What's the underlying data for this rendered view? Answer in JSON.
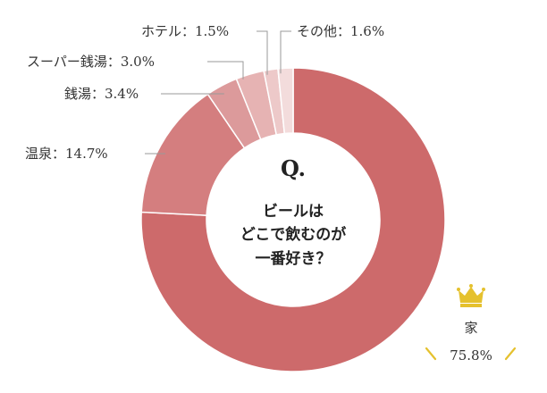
{
  "chart_data": {
    "type": "pie",
    "center_question": {
      "title": "Q.",
      "lines": [
        "ビールは",
        "どこで飲むのが",
        "一番好き？"
      ]
    },
    "slices": [
      {
        "label": "家",
        "value_text": "75.8%",
        "value": 75.8,
        "color": "#cd6a6b"
      },
      {
        "label": "温泉",
        "value_text": "14.7%",
        "value": 14.7,
        "color": "#d47e7f"
      },
      {
        "label": "銭湯",
        "value_text": "3.4%",
        "value": 3.4,
        "color": "#dc9a9b"
      },
      {
        "label": "スーパー銭湯",
        "value_text": "3.0%",
        "value": 3.0,
        "color": "#e6b3b3"
      },
      {
        "label": "ホテル",
        "value_text": "1.5%",
        "value": 1.5,
        "color": "#edc9c9"
      },
      {
        "label": "その他",
        "value_text": "1.6%",
        "value": 1.6,
        "color": "#f3dcdc"
      }
    ],
    "label_texts": [
      "温泉：14.7%",
      "銭湯：3.4%",
      "スーパー銭湯：3.0%",
      "ホテル：1.5%",
      "その他：1.6%"
    ],
    "highlight": {
      "label": "家",
      "value_text": "75.8%",
      "icon": "crown-icon",
      "icon_color": "#e5c12e"
    }
  }
}
